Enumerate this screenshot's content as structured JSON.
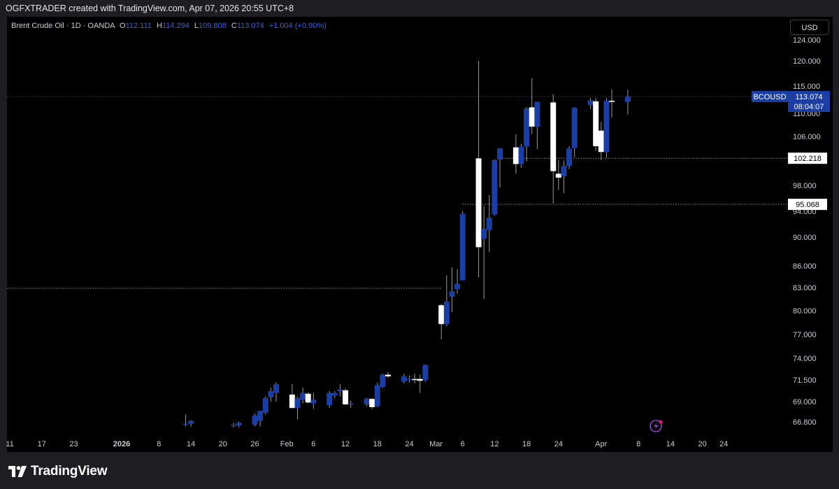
{
  "header": {
    "credit": "OGFXTRADER created with TradingView.com, Apr 07, 2026 20:55 UTC+8"
  },
  "legend": {
    "symbol": "Brent Crude Oil · 1D · OANDA",
    "open_label": "O",
    "open": "112.111",
    "high_label": "H",
    "high": "114.294",
    "low_label": "L",
    "low": "109.808",
    "close_label": "C",
    "close": "113.074",
    "change": "+1.004 (+0.90%)"
  },
  "currency_button": "USD",
  "footer": {
    "brand": "TradingView"
  },
  "colors": {
    "bull": "#1c3ea3",
    "bear": "#ffffff",
    "wick": "#9a9a9a",
    "background": "#000000",
    "accent": "#2f5fd6",
    "alert": "#e0197d"
  },
  "chart_data": {
    "type": "candlestick",
    "symbol": "BCOUSD",
    "y_ticks": [
      66.8,
      69.0,
      71.5,
      74.0,
      77.0,
      80.0,
      83.0,
      86.0,
      90.0,
      94.0,
      98.0,
      102.0,
      106.0,
      110.0,
      115.0,
      120.0,
      124.0
    ],
    "y_tick_labels": [
      "66.800",
      "69.000",
      "71.500",
      "74.000",
      "77.000",
      "80.000",
      "83.000",
      "86.000",
      "90.000",
      "94.000",
      "98.000",
      "102.000",
      "106.000",
      "110.000",
      "115.000",
      "120.000",
      "124.000"
    ],
    "x_tick_labels": [
      "11",
      "17",
      "23",
      "2026",
      "8",
      "14",
      "20",
      "26",
      "Feb",
      "6",
      "12",
      "18",
      "24",
      "Mar",
      "6",
      "12",
      "18",
      "24",
      "Apr",
      "8",
      "14",
      "20",
      "24"
    ],
    "x_tick_dates": [
      "2025-12-11",
      "2025-12-17",
      "2025-12-23",
      "2026-01-01",
      "2026-01-08",
      "2026-01-14",
      "2026-01-20",
      "2026-01-26",
      "2026-02-01",
      "2026-02-06",
      "2026-02-12",
      "2026-02-18",
      "2026-02-24",
      "2026-03-01",
      "2026-03-06",
      "2026-03-12",
      "2026-03-18",
      "2026-03-24",
      "2026-04-01",
      "2026-04-08",
      "2026-04-14",
      "2026-04-20",
      "2026-04-24"
    ],
    "price_labels": [
      {
        "value": 113.074,
        "label": "113.074",
        "symbol": "BCOUSD",
        "countdown": "08:04:07",
        "style": "current"
      },
      {
        "value": 102.218,
        "label": "102.218",
        "style": "horizontal-line"
      },
      {
        "value": 95.068,
        "label": "95.068",
        "style": "horizontal-line"
      }
    ],
    "horizontal_lines": [
      {
        "value": 113.074,
        "extent": "full"
      },
      {
        "value": 102.218,
        "extent": "from-candle"
      },
      {
        "value": 95.068,
        "extent": "from-candle"
      },
      {
        "value": 82.9,
        "extent": "left-segment"
      }
    ],
    "candles": [
      {
        "date": "2026-01-13",
        "o": 66.5,
        "h": 67.6,
        "l": 66.3,
        "c": 66.6
      },
      {
        "date": "2026-01-14",
        "o": 66.6,
        "h": 67.0,
        "l": 66.3,
        "c": 66.9
      },
      {
        "date": "2026-01-22",
        "o": 66.4,
        "h": 66.7,
        "l": 66.2,
        "c": 66.5
      },
      {
        "date": "2026-01-23",
        "o": 66.4,
        "h": 66.8,
        "l": 66.2,
        "c": 66.7
      },
      {
        "date": "2026-01-26",
        "o": 66.5,
        "h": 67.7,
        "l": 66.3,
        "c": 67.5
      },
      {
        "date": "2026-01-27",
        "o": 66.9,
        "h": 68.0,
        "l": 66.3,
        "c": 68.0
      },
      {
        "date": "2026-01-28",
        "o": 67.8,
        "h": 69.6,
        "l": 67.6,
        "c": 69.4
      },
      {
        "date": "2026-01-29",
        "o": 69.5,
        "h": 70.6,
        "l": 69.0,
        "c": 70.2
      },
      {
        "date": "2026-01-30",
        "o": 70.0,
        "h": 71.2,
        "l": 69.0,
        "c": 71.0
      },
      {
        "date": "2026-02-02",
        "o": 69.8,
        "h": 71.0,
        "l": 68.3,
        "c": 68.3
      },
      {
        "date": "2026-02-03",
        "o": 68.3,
        "h": 69.6,
        "l": 67.1,
        "c": 69.4
      },
      {
        "date": "2026-02-04",
        "o": 69.2,
        "h": 70.6,
        "l": 68.8,
        "c": 70.0
      },
      {
        "date": "2026-02-05",
        "o": 69.9,
        "h": 70.1,
        "l": 68.8,
        "c": 68.9
      },
      {
        "date": "2026-02-06",
        "o": 68.8,
        "h": 70.0,
        "l": 68.2,
        "c": 69.2
      },
      {
        "date": "2026-02-09",
        "o": 68.6,
        "h": 70.2,
        "l": 68.3,
        "c": 70.0
      },
      {
        "date": "2026-02-10",
        "o": 69.7,
        "h": 70.2,
        "l": 69.4,
        "c": 70.0
      },
      {
        "date": "2026-02-11",
        "o": 70.2,
        "h": 71.0,
        "l": 69.6,
        "c": 70.4
      },
      {
        "date": "2026-02-12",
        "o": 70.3,
        "h": 70.5,
        "l": 68.6,
        "c": 68.7
      },
      {
        "date": "2026-02-13",
        "o": 68.7,
        "h": 69.1,
        "l": 68.3,
        "c": 68.8
      },
      {
        "date": "2026-02-16",
        "o": 68.7,
        "h": 69.4,
        "l": 68.5,
        "c": 69.3
      },
      {
        "date": "2026-02-17",
        "o": 69.3,
        "h": 69.4,
        "l": 68.2,
        "c": 68.4
      },
      {
        "date": "2026-02-18",
        "o": 68.5,
        "h": 71.2,
        "l": 68.4,
        "c": 70.9
      },
      {
        "date": "2026-02-19",
        "o": 70.7,
        "h": 72.2,
        "l": 70.6,
        "c": 72.1
      },
      {
        "date": "2026-02-20",
        "o": 72.1,
        "h": 72.4,
        "l": 71.7,
        "c": 71.9
      },
      {
        "date": "2026-02-23",
        "o": 71.3,
        "h": 72.2,
        "l": 71.1,
        "c": 71.9
      },
      {
        "date": "2026-02-24",
        "o": 71.6,
        "h": 72.0,
        "l": 71.2,
        "c": 71.6
      },
      {
        "date": "2026-02-25",
        "o": 71.6,
        "h": 72.2,
        "l": 71.1,
        "c": 71.5
      },
      {
        "date": "2026-02-26",
        "o": 71.6,
        "h": 72.1,
        "l": 70.0,
        "c": 71.4
      },
      {
        "date": "2026-02-27",
        "o": 71.5,
        "h": 73.3,
        "l": 71.3,
        "c": 73.2
      },
      {
        "date": "2026-03-02",
        "o": 80.7,
        "h": 80.9,
        "l": 76.4,
        "c": 78.3
      },
      {
        "date": "2026-03-03",
        "o": 78.3,
        "h": 84.7,
        "l": 78.0,
        "c": 81.2
      },
      {
        "date": "2026-03-04",
        "o": 81.8,
        "h": 85.8,
        "l": 79.8,
        "c": 82.5
      },
      {
        "date": "2026-03-05",
        "o": 82.8,
        "h": 85.5,
        "l": 82.2,
        "c": 83.5
      },
      {
        "date": "2026-03-06",
        "o": 84.0,
        "h": 94.0,
        "l": 84.0,
        "c": 93.6
      },
      {
        "date": "2026-03-09",
        "o": 102.2,
        "h": 120.0,
        "l": 84.4,
        "c": 88.6
      },
      {
        "date": "2026-03-10",
        "o": 89.8,
        "h": 94.8,
        "l": 81.5,
        "c": 91.3
      },
      {
        "date": "2026-03-11",
        "o": 91.1,
        "h": 96.5,
        "l": 87.9,
        "c": 93.0
      },
      {
        "date": "2026-03-12",
        "o": 93.5,
        "h": 102.0,
        "l": 93.3,
        "c": 101.9
      },
      {
        "date": "2026-03-13",
        "o": 102.0,
        "h": 104.0,
        "l": 97.7,
        "c": 103.9
      },
      {
        "date": "2026-03-16",
        "o": 104.1,
        "h": 106.4,
        "l": 99.8,
        "c": 101.3
      },
      {
        "date": "2026-03-17",
        "o": 101.3,
        "h": 104.7,
        "l": 100.7,
        "c": 104.2
      },
      {
        "date": "2026-03-18",
        "o": 104.3,
        "h": 111.2,
        "l": 101.7,
        "c": 110.9
      },
      {
        "date": "2026-03-19",
        "o": 111.1,
        "h": 116.6,
        "l": 106.4,
        "c": 107.7
      },
      {
        "date": "2026-03-20",
        "o": 107.7,
        "h": 112.1,
        "l": 103.8,
        "c": 112.1
      },
      {
        "date": "2026-03-23",
        "o": 112.0,
        "h": 113.5,
        "l": 95.2,
        "c": 100.2
      },
      {
        "date": "2026-03-24",
        "o": 99.8,
        "h": 101.9,
        "l": 97.3,
        "c": 99.2
      },
      {
        "date": "2026-03-25",
        "o": 99.4,
        "h": 101.8,
        "l": 96.8,
        "c": 101.0
      },
      {
        "date": "2026-03-26",
        "o": 101.0,
        "h": 104.3,
        "l": 100.5,
        "c": 103.9
      },
      {
        "date": "2026-03-27",
        "o": 104.0,
        "h": 111.1,
        "l": 102.4,
        "c": 111.0
      },
      {
        "date": "2026-03-30",
        "o": 111.5,
        "h": 112.8,
        "l": 110.8,
        "c": 112.4
      },
      {
        "date": "2026-03-31",
        "o": 112.2,
        "h": 112.8,
        "l": 103.5,
        "c": 104.3
      },
      {
        "date": "2026-04-01",
        "o": 107.0,
        "h": 108.5,
        "l": 101.9,
        "c": 103.3
      },
      {
        "date": "2026-04-02",
        "o": 103.3,
        "h": 112.8,
        "l": 102.3,
        "c": 112.3
      },
      {
        "date": "2026-04-03",
        "o": 112.3,
        "h": 114.4,
        "l": 109.3,
        "c": 112.1
      },
      {
        "date": "2026-04-06",
        "o": 112.111,
        "h": 114.294,
        "l": 109.808,
        "c": 113.074
      }
    ]
  }
}
